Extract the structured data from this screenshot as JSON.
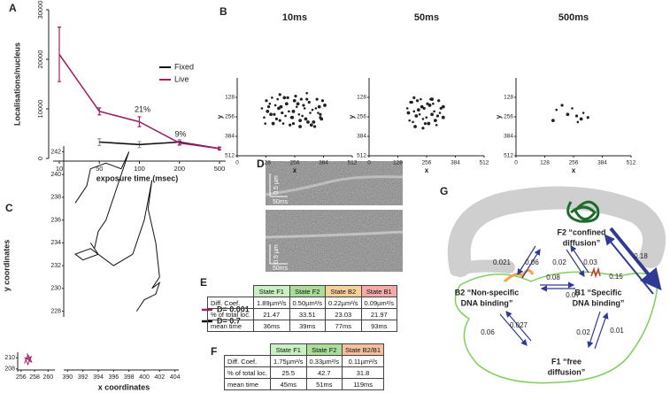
{
  "panel_labels": [
    "A",
    "B",
    "C",
    "D",
    "E",
    "F",
    "G"
  ],
  "chart_data": [
    {
      "type": "line",
      "ylabel": "Localisations/nucleus",
      "xlabel": "exposure time (msec)",
      "categories": [
        "10",
        "50",
        "100",
        "200",
        "500"
      ],
      "ylim": [
        0,
        30000
      ],
      "yticks": [
        0,
        10000,
        20000,
        30000
      ],
      "legend": "right",
      "series": [
        {
          "name": "Fixed",
          "color": "#111111",
          "error_color": "#999999",
          "values": [
            null,
            3300,
            2800,
            3300,
            2000
          ],
          "errors": [
            null,
            700,
            600,
            500,
            200
          ]
        },
        {
          "name": "Live",
          "color": "#a3206b",
          "error_color": "#a3206b",
          "values": [
            21000,
            9500,
            7400,
            3100,
            2000
          ],
          "errors": [
            5500,
            700,
            1000,
            400,
            300
          ]
        }
      ],
      "annotations": [
        "21%",
        "9%"
      ]
    },
    {
      "type": "scatter",
      "title": "10ms",
      "xlabel": "x",
      "ylabel": "y",
      "color": "#222222",
      "xlim": [
        0,
        512
      ],
      "ylim": [
        512,
        0
      ],
      "xticks": [
        0,
        128,
        256,
        384,
        512
      ],
      "yticks": [
        128,
        256,
        384,
        512
      ],
      "x": [
        110,
        130,
        150,
        170,
        190,
        210,
        230,
        250,
        270,
        290,
        310,
        330,
        350,
        370,
        390,
        120,
        140,
        160,
        180,
        200,
        220,
        240,
        260,
        280,
        300,
        320,
        340,
        360,
        380,
        135,
        155,
        175,
        195,
        215,
        235,
        255,
        275,
        295,
        315,
        335,
        355,
        375,
        145,
        165,
        185,
        205,
        225,
        245,
        265,
        285,
        305,
        325,
        345,
        365,
        125,
        190,
        250,
        310,
        370,
        280
      ],
      "y": [
        200,
        150,
        240,
        180,
        280,
        130,
        220,
        300,
        170,
        250,
        140,
        310,
        200,
        260,
        180,
        260,
        190,
        300,
        140,
        230,
        170,
        260,
        120,
        320,
        200,
        160,
        290,
        230,
        150,
        220,
        130,
        270,
        190,
        250,
        310,
        150,
        240,
        180,
        290,
        210,
        140,
        270,
        170,
        240,
        200,
        300,
        130,
        260,
        190,
        140,
        270,
        230,
        320,
        190,
        300,
        110,
        220,
        100,
        240,
        280
      ]
    },
    {
      "type": "scatter",
      "title": "50ms",
      "xlabel": "x",
      "ylabel": "y",
      "color": "#222222",
      "xlim": [
        0,
        512
      ],
      "ylim": [
        512,
        0
      ],
      "xticks": [
        0,
        128,
        256,
        384,
        512
      ],
      "yticks": [
        128,
        256,
        384,
        512
      ],
      "x": [
        170,
        190,
        210,
        230,
        250,
        270,
        290,
        310,
        330,
        180,
        200,
        220,
        240,
        260,
        280,
        300,
        320,
        175,
        195,
        215,
        235,
        255,
        275,
        295,
        315,
        185,
        205,
        225,
        245,
        265,
        285,
        305,
        330,
        200,
        240,
        280
      ],
      "y": [
        200,
        160,
        250,
        140,
        300,
        180,
        220,
        150,
        260,
        280,
        130,
        210,
        270,
        170,
        240,
        310,
        200,
        230,
        290,
        150,
        190,
        260,
        140,
        280,
        230,
        160,
        320,
        240,
        200,
        300,
        170,
        250,
        190,
        220,
        330,
        140
      ]
    },
    {
      "type": "scatter",
      "title": "500ms",
      "xlabel": "x",
      "ylabel": "y",
      "color": "#222222",
      "xlim": [
        0,
        512
      ],
      "ylim": [
        512,
        0
      ],
      "xticks": [
        0,
        128,
        256,
        384,
        512
      ],
      "yticks": [
        128,
        256,
        384,
        512
      ],
      "x": [
        180,
        205,
        230,
        250,
        270,
        290,
        300,
        320,
        165,
        275
      ],
      "y": [
        210,
        180,
        240,
        200,
        250,
        270,
        230,
        260,
        280,
        290
      ]
    },
    {
      "type": "line",
      "xlabel": "x coordinates",
      "ylabel": "y coordinates",
      "xlim": [
        389.5,
        404.5
      ],
      "ylim": [
        227.5,
        242.5
      ],
      "xticks": [
        390,
        392,
        394,
        396,
        398,
        400,
        402,
        404
      ],
      "yticks": [
        228,
        230,
        232,
        234,
        236,
        238,
        240,
        242
      ],
      "series": [
        {
          "name": "D= 0.7",
          "color": "#111111",
          "x": [
            391,
            392.5,
            393,
            395,
            397,
            398,
            396.5,
            395,
            394,
            393.5,
            393,
            394,
            392,
            391,
            393,
            396,
            398.5,
            400,
            401,
            400.5,
            401.5,
            402,
            401,
            402,
            401.5,
            400,
            399.5,
            399
          ],
          "y": [
            237.5,
            239,
            240.5,
            241,
            240.5,
            242,
            239,
            236,
            235,
            233.5,
            234,
            233,
            232.5,
            233,
            233.5,
            232,
            233,
            236,
            239.5,
            237,
            234,
            231,
            230,
            230.5,
            229.5,
            229,
            228.5,
            228
          ]
        }
      ]
    },
    {
      "type": "line",
      "xlim": [
        255.5,
        261
      ],
      "ylim": [
        207.5,
        211
      ],
      "xticks": [
        256,
        258,
        260
      ],
      "yticks": [
        208,
        210
      ],
      "series": [
        {
          "name": "D= 0.001",
          "color": "#a3206b",
          "x": [
            256.5,
            257,
            256.8,
            257.5,
            257,
            256.6,
            257.3,
            256.9,
            257.6,
            257.1
          ],
          "y": [
            209,
            210.5,
            209.8,
            210.2,
            208.8,
            210,
            209.5,
            210.8,
            209.2,
            209.6
          ]
        }
      ]
    }
  ],
  "kymographs": [
    {
      "scale_length": "0.5 µm",
      "scale_time": "50ms"
    },
    {
      "scale_length": "0.5 µm",
      "scale_time": "50ms"
    }
  ],
  "tables": [
    {
      "headers": [
        "State F1",
        "State F2",
        "State B2",
        "State B1"
      ],
      "header_colors": [
        "#c9efc2",
        "#a9dd98",
        "#f9cf9c",
        "#f3aaa8"
      ],
      "rows": [
        [
          "Diff. Coef.",
          "1.89µm²/s",
          "0.50µm²/s",
          "0.22µm²/s",
          "0.09µm²/s"
        ],
        [
          "% of total loc.",
          "21.47",
          "33.51",
          "23.03",
          "21.97"
        ],
        [
          "mean time",
          "36ms",
          "39ms",
          "77ms",
          "93ms"
        ]
      ]
    },
    {
      "headers": [
        "State F1",
        "State F2",
        "State B2/B1"
      ],
      "header_colors": [
        "#c9efc2",
        "#a9dd98",
        "#f6c09e"
      ],
      "rows": [
        [
          "Diff. Coef.",
          "1.75µm²/s",
          "0.33µm²/s",
          "0.11µm²/s"
        ],
        [
          "% of total loc.",
          "25.5",
          "42.7",
          "31.8"
        ],
        [
          "mean time",
          "45ms",
          "51ms",
          "119ms"
        ]
      ]
    }
  ],
  "diagram": {
    "nodes": [
      {
        "label": [
          "F2 “confined",
          "diffusion”"
        ]
      },
      {
        "label": [
          "B2 “Non-specific",
          "DNA binding”"
        ]
      },
      {
        "label": [
          "B1 “Specific",
          "DNA binding”"
        ]
      },
      {
        "label": [
          "F1 “free",
          "diffusion”"
        ]
      }
    ],
    "rates": [
      0.021,
      0.06,
      0.02,
      0.03,
      0.18,
      0.15,
      0.08,
      0.07,
      0.06,
      0.027,
      0.02,
      0.01
    ]
  }
}
